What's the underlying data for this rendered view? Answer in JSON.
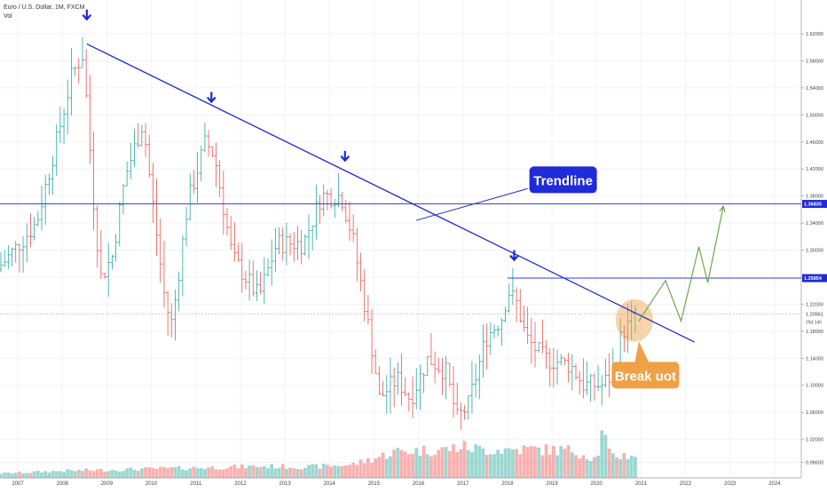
{
  "header": {
    "title": "Euro / U.S. Dollar, 1M, FXCM",
    "vol_label": "Vol"
  },
  "colors": {
    "up": "#26a69a",
    "down": "#ef5350",
    "trendline": "#1f2ad8",
    "arrow": "#1f2ad8",
    "projection": "#6aa84f",
    "breakout": "#f0a045"
  },
  "chart_data": {
    "type": "candlestick",
    "title": "Euro / U.S. Dollar, 1M, FXCM",
    "xlabel": "",
    "ylabel": "",
    "xlim": [
      2006.6,
      2024.6
    ],
    "ylim": [
      0.963,
      1.67
    ],
    "x_ticks": [
      "2007",
      "2008",
      "2009",
      "2010",
      "2011",
      "2012",
      "2013",
      "2014",
      "2015",
      "2016",
      "2017",
      "2018",
      "2019",
      "2020",
      "2021",
      "2022",
      "2023",
      "2024"
    ],
    "y_ticks": [
      "0.98600",
      "1.02000",
      "1.06000",
      "1.10000",
      "1.14000",
      "1.18000",
      "1.22000",
      "1.26000",
      "1.30000",
      "1.34000",
      "1.38000",
      "1.42000",
      "1.46000",
      "1.50000",
      "1.54000",
      "1.58000",
      "1.62000"
    ],
    "y_ticks_values": [
      0.986,
      1.02,
      1.06,
      1.1,
      1.14,
      1.18,
      1.22,
      1.26,
      1.3,
      1.34,
      1.38,
      1.42,
      1.46,
      1.5,
      1.54,
      1.58,
      1.62
    ],
    "price_path": [
      [
        2006.6,
        1.27
      ],
      [
        2007.0,
        1.3
      ],
      [
        2007.5,
        1.34
      ],
      [
        2007.95,
        1.46
      ],
      [
        2008.3,
        1.56
      ],
      [
        2008.55,
        1.59
      ],
      [
        2008.8,
        1.36
      ],
      [
        2008.95,
        1.26
      ],
      [
        2009.2,
        1.29
      ],
      [
        2009.5,
        1.41
      ],
      [
        2009.9,
        1.49
      ],
      [
        2010.0,
        1.43
      ],
      [
        2010.4,
        1.22
      ],
      [
        2010.55,
        1.19
      ],
      [
        2010.9,
        1.37
      ],
      [
        2011.3,
        1.46
      ],
      [
        2011.5,
        1.44
      ],
      [
        2011.9,
        1.29
      ],
      [
        2012.5,
        1.23
      ],
      [
        2012.9,
        1.31
      ],
      [
        2013.5,
        1.31
      ],
      [
        2013.9,
        1.38
      ],
      [
        2014.35,
        1.38
      ],
      [
        2014.6,
        1.32
      ],
      [
        2014.9,
        1.21
      ],
      [
        2015.1,
        1.13
      ],
      [
        2015.2,
        1.08
      ],
      [
        2015.6,
        1.11
      ],
      [
        2015.9,
        1.08
      ],
      [
        2016.3,
        1.14
      ],
      [
        2016.7,
        1.12
      ],
      [
        2016.95,
        1.05
      ],
      [
        2017.2,
        1.07
      ],
      [
        2017.6,
        1.17
      ],
      [
        2017.95,
        1.2
      ],
      [
        2018.1,
        1.24
      ],
      [
        2018.3,
        1.22
      ],
      [
        2018.5,
        1.17
      ],
      [
        2018.9,
        1.14
      ],
      [
        2019.5,
        1.13
      ],
      [
        2019.8,
        1.1
      ],
      [
        2020.0,
        1.1
      ],
      [
        2020.2,
        1.1
      ],
      [
        2020.5,
        1.12
      ],
      [
        2020.65,
        1.18
      ],
      [
        2020.85,
        1.19
      ],
      [
        2020.92,
        1.21
      ]
    ],
    "volume_path": [
      [
        2006.7,
        0.06
      ],
      [
        2008.0,
        0.09
      ],
      [
        2009.5,
        0.11
      ],
      [
        2011.0,
        0.13
      ],
      [
        2012.5,
        0.15
      ],
      [
        2013.5,
        0.14
      ],
      [
        2014.5,
        0.17
      ],
      [
        2015.0,
        0.25
      ],
      [
        2015.5,
        0.34
      ],
      [
        2016.5,
        0.36
      ],
      [
        2017.0,
        0.4
      ],
      [
        2017.5,
        0.36
      ],
      [
        2018.5,
        0.37
      ],
      [
        2019.5,
        0.35
      ],
      [
        2020.0,
        0.24
      ],
      [
        2020.15,
        0.62
      ],
      [
        2020.3,
        0.28
      ],
      [
        2020.92,
        0.3
      ]
    ],
    "trendline": {
      "from": [
        2008.55,
        1.605
      ],
      "to": [
        2022.2,
        1.164
      ]
    },
    "horizontal_lines": [
      {
        "y": 1.36835,
        "x_start": 2006.6,
        "label": "1.36835"
      },
      {
        "y": 1.25854,
        "x_start": 2018.0,
        "label": "1.25854"
      }
    ],
    "current_price": {
      "y": 1.20561,
      "label": "1.20561",
      "countdown": "29d 14h"
    },
    "arrow_markers": [
      {
        "x": 2008.55,
        "y": 1.648
      },
      {
        "x": 2011.35,
        "y": 1.526
      },
      {
        "x": 2014.35,
        "y": 1.439
      },
      {
        "x": 2018.15,
        "y": 1.292
      }
    ],
    "projection_path": [
      [
        2020.95,
        1.195
      ],
      [
        2021.55,
        1.255
      ],
      [
        2021.9,
        1.195
      ],
      [
        2022.3,
        1.305
      ],
      [
        2022.5,
        1.252
      ],
      [
        2022.85,
        1.365
      ]
    ],
    "breakout_zone": {
      "x": 2020.85,
      "y": 1.196
    },
    "annotations": [
      {
        "text": "Trendline",
        "x": 2019.25,
        "y": 1.404
      },
      {
        "text": "Break uot",
        "x": 2021.1,
        "y": 1.115
      }
    ]
  }
}
